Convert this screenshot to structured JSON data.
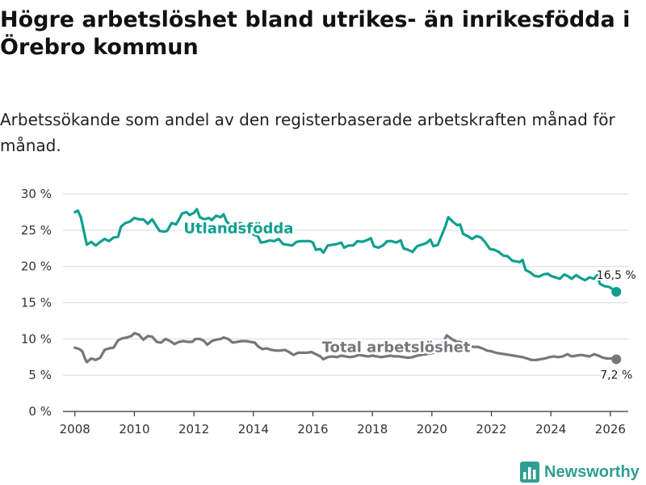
{
  "title": "Högre arbetslöshet bland utrikes- än inrikesfödda i Örebro kommun",
  "subtitle": "Arbetssökande som andel av den registerbaserade arbetskraften månad för månad.",
  "brand": "Newsworthy",
  "colors": {
    "foreign_born": "#0e9f8e",
    "total": "#76767b",
    "grid": "#dddddd",
    "axis": "#333333",
    "brand": "#2f9e93"
  },
  "chart_data": {
    "type": "line",
    "title": "Högre arbetslöshet bland utrikes- än inrikesfödda i Örebro kommun",
    "xlabel": "",
    "ylabel": "",
    "xlim": [
      2007.6,
      2026.6
    ],
    "ylim": [
      0,
      30
    ],
    "x_ticks": [
      2008,
      2010,
      2012,
      2014,
      2016,
      2018,
      2020,
      2022,
      2024,
      2026
    ],
    "x_tick_labels": [
      "2008",
      "2010",
      "2012",
      "2014",
      "2016",
      "2018",
      "2020",
      "2022",
      "2024",
      "2026"
    ],
    "y_ticks": [
      0,
      5,
      10,
      15,
      20,
      25,
      30
    ],
    "y_tick_labels": [
      "0 %",
      "5 %",
      "10 %",
      "15 %",
      "20 %",
      "25 %",
      "30 %"
    ],
    "grid": true,
    "series": [
      {
        "name": "Utlandsfödda",
        "label_x": 2013.5,
        "label_y": 24.6,
        "end_label": "16,5 %",
        "points": [
          [
            2008.0,
            27.5
          ],
          [
            2008.1,
            27.7
          ],
          [
            2008.2,
            26.8
          ],
          [
            2008.4,
            23.0
          ],
          [
            2008.55,
            23.4
          ],
          [
            2008.7,
            22.9
          ],
          [
            2008.85,
            23.4
          ],
          [
            2009.0,
            23.8
          ],
          [
            2009.15,
            23.5
          ],
          [
            2009.3,
            24.0
          ],
          [
            2009.45,
            24.1
          ],
          [
            2009.55,
            25.5
          ],
          [
            2009.7,
            26.0
          ],
          [
            2009.85,
            26.2
          ],
          [
            2010.0,
            26.7
          ],
          [
            2010.15,
            26.5
          ],
          [
            2010.3,
            26.5
          ],
          [
            2010.45,
            25.9
          ],
          [
            2010.6,
            26.5
          ],
          [
            2010.75,
            25.5
          ],
          [
            2010.85,
            24.9
          ],
          [
            2011.0,
            24.8
          ],
          [
            2011.1,
            24.9
          ],
          [
            2011.25,
            26.0
          ],
          [
            2011.4,
            25.8
          ],
          [
            2011.5,
            26.5
          ],
          [
            2011.6,
            27.3
          ],
          [
            2011.75,
            27.5
          ],
          [
            2011.85,
            27.1
          ],
          [
            2012.0,
            27.4
          ],
          [
            2012.1,
            27.9
          ],
          [
            2012.2,
            26.8
          ],
          [
            2012.35,
            26.5
          ],
          [
            2012.5,
            26.7
          ],
          [
            2012.6,
            26.4
          ],
          [
            2012.75,
            27.0
          ],
          [
            2012.9,
            26.8
          ],
          [
            2013.0,
            27.2
          ],
          [
            2013.1,
            26.2
          ],
          [
            2013.25,
            25.6
          ],
          [
            2013.4,
            25.8
          ],
          [
            2013.55,
            26.0
          ],
          [
            2013.7,
            25.7
          ],
          [
            2013.85,
            25.4
          ],
          [
            2014.0,
            24.4
          ],
          [
            2014.15,
            24.2
          ],
          [
            2014.25,
            23.3
          ],
          [
            2014.4,
            23.4
          ],
          [
            2014.55,
            23.6
          ],
          [
            2014.7,
            23.5
          ],
          [
            2014.85,
            23.8
          ],
          [
            2015.0,
            23.1
          ],
          [
            2015.15,
            23.0
          ],
          [
            2015.3,
            22.9
          ],
          [
            2015.45,
            23.4
          ],
          [
            2015.6,
            23.5
          ],
          [
            2015.75,
            23.5
          ],
          [
            2015.9,
            23.5
          ],
          [
            2016.0,
            23.3
          ],
          [
            2016.1,
            22.3
          ],
          [
            2016.25,
            22.4
          ],
          [
            2016.35,
            21.9
          ],
          [
            2016.5,
            22.9
          ],
          [
            2016.65,
            23.0
          ],
          [
            2016.8,
            23.1
          ],
          [
            2016.95,
            23.3
          ],
          [
            2017.05,
            22.6
          ],
          [
            2017.2,
            22.9
          ],
          [
            2017.35,
            22.9
          ],
          [
            2017.5,
            23.5
          ],
          [
            2017.65,
            23.4
          ],
          [
            2017.8,
            23.6
          ],
          [
            2017.95,
            23.9
          ],
          [
            2018.05,
            22.8
          ],
          [
            2018.2,
            22.6
          ],
          [
            2018.35,
            22.9
          ],
          [
            2018.5,
            23.5
          ],
          [
            2018.65,
            23.5
          ],
          [
            2018.8,
            23.3
          ],
          [
            2018.95,
            23.6
          ],
          [
            2019.05,
            22.5
          ],
          [
            2019.2,
            22.3
          ],
          [
            2019.35,
            22.0
          ],
          [
            2019.5,
            22.8
          ],
          [
            2019.65,
            23.0
          ],
          [
            2019.8,
            23.2
          ],
          [
            2019.95,
            23.7
          ],
          [
            2020.05,
            22.8
          ],
          [
            2020.2,
            23.0
          ],
          [
            2020.35,
            24.5
          ],
          [
            2020.45,
            25.5
          ],
          [
            2020.55,
            26.8
          ],
          [
            2020.7,
            26.2
          ],
          [
            2020.85,
            25.7
          ],
          [
            2020.95,
            25.8
          ],
          [
            2021.05,
            24.5
          ],
          [
            2021.2,
            24.2
          ],
          [
            2021.35,
            23.8
          ],
          [
            2021.5,
            24.2
          ],
          [
            2021.65,
            24.0
          ],
          [
            2021.8,
            23.3
          ],
          [
            2021.95,
            22.4
          ],
          [
            2022.1,
            22.3
          ],
          [
            2022.25,
            22.0
          ],
          [
            2022.4,
            21.5
          ],
          [
            2022.55,
            21.4
          ],
          [
            2022.7,
            20.8
          ],
          [
            2022.85,
            20.7
          ],
          [
            2022.95,
            20.6
          ],
          [
            2023.05,
            20.9
          ],
          [
            2023.15,
            19.5
          ],
          [
            2023.3,
            19.2
          ],
          [
            2023.45,
            18.7
          ],
          [
            2023.6,
            18.6
          ],
          [
            2023.75,
            18.9
          ],
          [
            2023.9,
            19.0
          ],
          [
            2024.0,
            18.7
          ],
          [
            2024.15,
            18.5
          ],
          [
            2024.3,
            18.3
          ],
          [
            2024.45,
            18.9
          ],
          [
            2024.6,
            18.6
          ],
          [
            2024.7,
            18.3
          ],
          [
            2024.85,
            18.8
          ],
          [
            2025.0,
            18.4
          ],
          [
            2025.15,
            18.1
          ],
          [
            2025.3,
            18.5
          ],
          [
            2025.45,
            18.3
          ],
          [
            2025.55,
            18.8
          ],
          [
            2025.65,
            17.6
          ],
          [
            2025.8,
            17.3
          ],
          [
            2025.95,
            17.2
          ],
          [
            2026.1,
            16.8
          ],
          [
            2026.2,
            16.5
          ]
        ]
      },
      {
        "name": "Total arbetslöshet",
        "label_x": 2018.8,
        "label_y": 8.2,
        "end_label": "7,2 %",
        "points": [
          [
            2008.0,
            8.8
          ],
          [
            2008.15,
            8.6
          ],
          [
            2008.25,
            8.3
          ],
          [
            2008.35,
            7.2
          ],
          [
            2008.4,
            6.8
          ],
          [
            2008.55,
            7.3
          ],
          [
            2008.7,
            7.1
          ],
          [
            2008.85,
            7.4
          ],
          [
            2009.0,
            8.5
          ],
          [
            2009.15,
            8.7
          ],
          [
            2009.3,
            8.8
          ],
          [
            2009.45,
            9.8
          ],
          [
            2009.6,
            10.1
          ],
          [
            2009.75,
            10.2
          ],
          [
            2009.9,
            10.4
          ],
          [
            2010.0,
            10.8
          ],
          [
            2010.15,
            10.6
          ],
          [
            2010.3,
            9.9
          ],
          [
            2010.45,
            10.4
          ],
          [
            2010.6,
            10.3
          ],
          [
            2010.75,
            9.6
          ],
          [
            2010.9,
            9.5
          ],
          [
            2011.05,
            10.0
          ],
          [
            2011.2,
            9.7
          ],
          [
            2011.35,
            9.3
          ],
          [
            2011.5,
            9.6
          ],
          [
            2011.65,
            9.7
          ],
          [
            2011.8,
            9.6
          ],
          [
            2011.95,
            9.6
          ],
          [
            2012.05,
            10.0
          ],
          [
            2012.2,
            10.0
          ],
          [
            2012.35,
            9.7
          ],
          [
            2012.45,
            9.2
          ],
          [
            2012.6,
            9.7
          ],
          [
            2012.75,
            9.9
          ],
          [
            2012.9,
            10.0
          ],
          [
            2013.0,
            10.2
          ],
          [
            2013.15,
            10.0
          ],
          [
            2013.3,
            9.5
          ],
          [
            2013.45,
            9.6
          ],
          [
            2013.6,
            9.7
          ],
          [
            2013.75,
            9.7
          ],
          [
            2013.9,
            9.6
          ],
          [
            2014.05,
            9.5
          ],
          [
            2014.15,
            9.0
          ],
          [
            2014.3,
            8.6
          ],
          [
            2014.45,
            8.7
          ],
          [
            2014.6,
            8.5
          ],
          [
            2014.75,
            8.4
          ],
          [
            2014.9,
            8.4
          ],
          [
            2015.05,
            8.5
          ],
          [
            2015.2,
            8.2
          ],
          [
            2015.35,
            7.8
          ],
          [
            2015.5,
            8.1
          ],
          [
            2015.65,
            8.1
          ],
          [
            2015.8,
            8.1
          ],
          [
            2015.95,
            8.2
          ],
          [
            2016.1,
            7.9
          ],
          [
            2016.25,
            7.6
          ],
          [
            2016.35,
            7.2
          ],
          [
            2016.5,
            7.5
          ],
          [
            2016.65,
            7.6
          ],
          [
            2016.8,
            7.5
          ],
          [
            2016.95,
            7.7
          ],
          [
            2017.1,
            7.6
          ],
          [
            2017.25,
            7.5
          ],
          [
            2017.4,
            7.6
          ],
          [
            2017.55,
            7.8
          ],
          [
            2017.7,
            7.7
          ],
          [
            2017.85,
            7.6
          ],
          [
            2018.0,
            7.7
          ],
          [
            2018.15,
            7.6
          ],
          [
            2018.3,
            7.5
          ],
          [
            2018.45,
            7.6
          ],
          [
            2018.6,
            7.7
          ],
          [
            2018.75,
            7.6
          ],
          [
            2018.9,
            7.6
          ],
          [
            2019.05,
            7.5
          ],
          [
            2019.2,
            7.4
          ],
          [
            2019.35,
            7.5
          ],
          [
            2019.5,
            7.7
          ],
          [
            2019.65,
            7.8
          ],
          [
            2019.8,
            7.9
          ],
          [
            2019.95,
            8.0
          ],
          [
            2020.05,
            8.1
          ],
          [
            2020.2,
            8.4
          ],
          [
            2020.35,
            9.3
          ],
          [
            2020.5,
            10.5
          ],
          [
            2020.6,
            10.2
          ],
          [
            2020.7,
            9.9
          ],
          [
            2020.85,
            9.6
          ],
          [
            2020.95,
            9.6
          ],
          [
            2021.1,
            9.3
          ],
          [
            2021.25,
            9.1
          ],
          [
            2021.4,
            8.9
          ],
          [
            2021.55,
            8.9
          ],
          [
            2021.7,
            8.7
          ],
          [
            2021.85,
            8.4
          ],
          [
            2022.0,
            8.3
          ],
          [
            2022.15,
            8.1
          ],
          [
            2022.3,
            8.0
          ],
          [
            2022.45,
            7.9
          ],
          [
            2022.6,
            7.8
          ],
          [
            2022.75,
            7.7
          ],
          [
            2022.9,
            7.6
          ],
          [
            2023.05,
            7.5
          ],
          [
            2023.2,
            7.3
          ],
          [
            2023.35,
            7.1
          ],
          [
            2023.5,
            7.1
          ],
          [
            2023.65,
            7.2
          ],
          [
            2023.8,
            7.3
          ],
          [
            2023.95,
            7.5
          ],
          [
            2024.1,
            7.6
          ],
          [
            2024.25,
            7.5
          ],
          [
            2024.4,
            7.6
          ],
          [
            2024.55,
            7.9
          ],
          [
            2024.7,
            7.6
          ],
          [
            2024.85,
            7.7
          ],
          [
            2025.0,
            7.8
          ],
          [
            2025.15,
            7.7
          ],
          [
            2025.3,
            7.6
          ],
          [
            2025.45,
            7.9
          ],
          [
            2025.6,
            7.7
          ],
          [
            2025.75,
            7.4
          ],
          [
            2025.9,
            7.3
          ],
          [
            2026.05,
            7.3
          ],
          [
            2026.2,
            7.2
          ]
        ]
      }
    ]
  }
}
